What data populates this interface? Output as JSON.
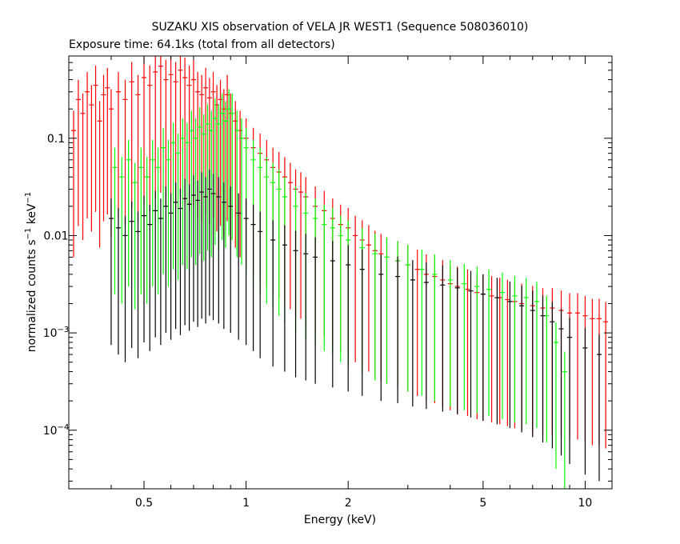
{
  "chart_data": {
    "type": "scatter",
    "title": "SUZAKU XIS observation of VELA JR WEST1 (Sequence 508036010)",
    "subtitle": "Exposure time: 64.1ks (total from all detectors)",
    "xlabel": "Energy (keV)",
    "ylabel_main": "normalized counts s",
    "ylabel_sup1": "−1",
    "ylabel_mid": " keV",
    "ylabel_sup2": "−1",
    "x_scale": "log",
    "y_scale": "log",
    "xlim": [
      0.3,
      12
    ],
    "ylim": [
      2.5e-05,
      0.7
    ],
    "x_ticks": [
      {
        "value": 0.5,
        "label": "0.5"
      },
      {
        "value": 1,
        "label": "1"
      },
      {
        "value": 2,
        "label": "2"
      },
      {
        "value": 5,
        "label": "5"
      },
      {
        "value": 10,
        "label": "10"
      }
    ],
    "y_ticks": [
      {
        "value": 0.1,
        "label": "0.1",
        "base": "",
        "exp": ""
      },
      {
        "value": 0.01,
        "label": "0.01",
        "base": "",
        "exp": ""
      },
      {
        "value": 0.001,
        "label": "",
        "base": "10",
        "exp": "−3"
      },
      {
        "value": 0.0001,
        "label": "",
        "base": "10",
        "exp": "−4"
      }
    ],
    "grid": false,
    "legend": "none",
    "series": [
      {
        "color": "#ff0000",
        "points": [
          [
            0.31,
            0.12
          ],
          [
            0.32,
            0.25
          ],
          [
            0.33,
            0.18
          ],
          [
            0.34,
            0.3
          ],
          [
            0.35,
            0.22
          ],
          [
            0.36,
            0.35
          ],
          [
            0.37,
            0.15
          ],
          [
            0.38,
            0.28
          ],
          [
            0.39,
            0.33
          ],
          [
            0.4,
            0.2
          ],
          [
            0.42,
            0.3
          ],
          [
            0.44,
            0.25
          ],
          [
            0.46,
            0.38
          ],
          [
            0.48,
            0.28
          ],
          [
            0.5,
            0.42
          ],
          [
            0.52,
            0.35
          ],
          [
            0.54,
            0.48
          ],
          [
            0.56,
            0.55
          ],
          [
            0.58,
            0.4
          ],
          [
            0.6,
            0.45
          ],
          [
            0.62,
            0.38
          ],
          [
            0.64,
            0.5
          ],
          [
            0.66,
            0.42
          ],
          [
            0.68,
            0.35
          ],
          [
            0.7,
            0.4
          ],
          [
            0.72,
            0.3
          ],
          [
            0.74,
            0.28
          ],
          [
            0.76,
            0.33
          ],
          [
            0.78,
            0.26
          ],
          [
            0.8,
            0.3
          ],
          [
            0.82,
            0.22
          ],
          [
            0.84,
            0.25
          ],
          [
            0.86,
            0.2
          ],
          [
            0.88,
            0.28
          ],
          [
            0.9,
            0.18
          ],
          [
            0.93,
            0.15
          ],
          [
            0.96,
            0.12
          ],
          [
            1.0,
            0.1
          ],
          [
            1.05,
            0.08
          ],
          [
            1.1,
            0.07
          ],
          [
            1.15,
            0.06
          ],
          [
            1.2,
            0.05
          ],
          [
            1.25,
            0.045
          ],
          [
            1.3,
            0.04
          ],
          [
            1.35,
            0.035
          ],
          [
            1.4,
            0.03
          ],
          [
            1.45,
            0.028
          ],
          [
            1.5,
            0.025
          ],
          [
            1.6,
            0.02
          ],
          [
            1.7,
            0.018
          ],
          [
            1.8,
            0.015
          ],
          [
            1.9,
            0.013
          ],
          [
            2.0,
            0.012
          ],
          [
            2.1,
            0.01
          ],
          [
            2.2,
            0.009
          ],
          [
            2.3,
            0.008
          ],
          [
            2.4,
            0.007
          ],
          [
            2.5,
            0.0065
          ],
          [
            2.6,
            0.006
          ],
          [
            2.8,
            0.0055
          ],
          [
            3.0,
            0.005
          ],
          [
            3.2,
            0.0045
          ],
          [
            3.4,
            0.004
          ],
          [
            3.6,
            0.0038
          ],
          [
            3.8,
            0.0035
          ],
          [
            4.0,
            0.0032
          ],
          [
            4.2,
            0.003
          ],
          [
            4.5,
            0.0028
          ],
          [
            4.8,
            0.0026
          ],
          [
            5.0,
            0.0025
          ],
          [
            5.3,
            0.0024
          ],
          [
            5.6,
            0.0023
          ],
          [
            5.9,
            0.0022
          ],
          [
            6.2,
            0.0021
          ],
          [
            6.5,
            0.002
          ],
          [
            7.0,
            0.0019
          ],
          [
            7.5,
            0.0018
          ],
          [
            8.0,
            0.0018
          ],
          [
            8.5,
            0.0017
          ],
          [
            9.0,
            0.0016
          ],
          [
            9.5,
            0.0016
          ],
          [
            10.0,
            0.0015
          ],
          [
            10.5,
            0.0014
          ],
          [
            11.0,
            0.0014
          ],
          [
            11.5,
            0.0013
          ]
        ]
      },
      {
        "color": "#00ff00",
        "points": [
          [
            0.41,
            0.05
          ],
          [
            0.43,
            0.04
          ],
          [
            0.45,
            0.06
          ],
          [
            0.47,
            0.035
          ],
          [
            0.49,
            0.05
          ],
          [
            0.51,
            0.04
          ],
          [
            0.53,
            0.06
          ],
          [
            0.55,
            0.05
          ],
          [
            0.57,
            0.08
          ],
          [
            0.59,
            0.06
          ],
          [
            0.61,
            0.09
          ],
          [
            0.63,
            0.07
          ],
          [
            0.65,
            0.1
          ],
          [
            0.67,
            0.09
          ],
          [
            0.69,
            0.12
          ],
          [
            0.71,
            0.1
          ],
          [
            0.73,
            0.13
          ],
          [
            0.75,
            0.11
          ],
          [
            0.77,
            0.14
          ],
          [
            0.79,
            0.12
          ],
          [
            0.81,
            0.16
          ],
          [
            0.83,
            0.14
          ],
          [
            0.85,
            0.18
          ],
          [
            0.87,
            0.15
          ],
          [
            0.89,
            0.2
          ],
          [
            0.91,
            0.18
          ],
          [
            0.94,
            0.12
          ],
          [
            0.97,
            0.1
          ],
          [
            1.0,
            0.08
          ],
          [
            1.05,
            0.06
          ],
          [
            1.1,
            0.05
          ],
          [
            1.15,
            0.04
          ],
          [
            1.2,
            0.035
          ],
          [
            1.25,
            0.03
          ],
          [
            1.3,
            0.025
          ],
          [
            1.4,
            0.02
          ],
          [
            1.5,
            0.017
          ],
          [
            1.6,
            0.015
          ],
          [
            1.7,
            0.013
          ],
          [
            1.8,
            0.012
          ],
          [
            1.9,
            0.01
          ],
          [
            2.0,
            0.009
          ],
          [
            2.2,
            0.0075
          ],
          [
            2.4,
            0.0065
          ],
          [
            2.6,
            0.006
          ],
          [
            2.8,
            0.0055
          ],
          [
            3.0,
            0.005
          ],
          [
            3.3,
            0.0045
          ],
          [
            3.6,
            0.004
          ],
          [
            4.0,
            0.0035
          ],
          [
            4.4,
            0.0032
          ],
          [
            4.8,
            0.003
          ],
          [
            5.2,
            0.0028
          ],
          [
            5.7,
            0.0026
          ],
          [
            6.2,
            0.0024
          ],
          [
            6.7,
            0.0023
          ],
          [
            7.2,
            0.0021
          ],
          [
            7.7,
            0.0015
          ],
          [
            8.2,
            0.0008
          ],
          [
            8.7,
            0.0004
          ]
        ]
      },
      {
        "color": "#000000",
        "points": [
          [
            0.4,
            0.015
          ],
          [
            0.42,
            0.012
          ],
          [
            0.44,
            0.01
          ],
          [
            0.46,
            0.014
          ],
          [
            0.48,
            0.011
          ],
          [
            0.5,
            0.016
          ],
          [
            0.52,
            0.013
          ],
          [
            0.54,
            0.018
          ],
          [
            0.56,
            0.015
          ],
          [
            0.58,
            0.02
          ],
          [
            0.6,
            0.017
          ],
          [
            0.62,
            0.022
          ],
          [
            0.64,
            0.019
          ],
          [
            0.66,
            0.024
          ],
          [
            0.68,
            0.021
          ],
          [
            0.7,
            0.026
          ],
          [
            0.72,
            0.023
          ],
          [
            0.74,
            0.028
          ],
          [
            0.76,
            0.025
          ],
          [
            0.78,
            0.03
          ],
          [
            0.8,
            0.027
          ],
          [
            0.83,
            0.025
          ],
          [
            0.86,
            0.022
          ],
          [
            0.9,
            0.02
          ],
          [
            0.95,
            0.017
          ],
          [
            1.0,
            0.015
          ],
          [
            1.05,
            0.013
          ],
          [
            1.1,
            0.011
          ],
          [
            1.2,
            0.009
          ],
          [
            1.3,
            0.008
          ],
          [
            1.4,
            0.007
          ],
          [
            1.5,
            0.0065
          ],
          [
            1.6,
            0.006
          ],
          [
            1.8,
            0.0055
          ],
          [
            2.0,
            0.005
          ],
          [
            2.2,
            0.0045
          ],
          [
            2.5,
            0.004
          ],
          [
            2.8,
            0.0038
          ],
          [
            3.1,
            0.0035
          ],
          [
            3.4,
            0.0033
          ],
          [
            3.8,
            0.0031
          ],
          [
            4.2,
            0.0029
          ],
          [
            4.6,
            0.0027
          ],
          [
            5.0,
            0.0025
          ],
          [
            5.5,
            0.0023
          ],
          [
            6.0,
            0.0021
          ],
          [
            6.5,
            0.0019
          ],
          [
            7.0,
            0.0017
          ],
          [
            7.5,
            0.0015
          ],
          [
            8.0,
            0.0013
          ],
          [
            8.5,
            0.0011
          ],
          [
            9.0,
            0.0009
          ],
          [
            10.0,
            0.0007
          ],
          [
            11.0,
            0.0006
          ]
        ]
      }
    ]
  }
}
